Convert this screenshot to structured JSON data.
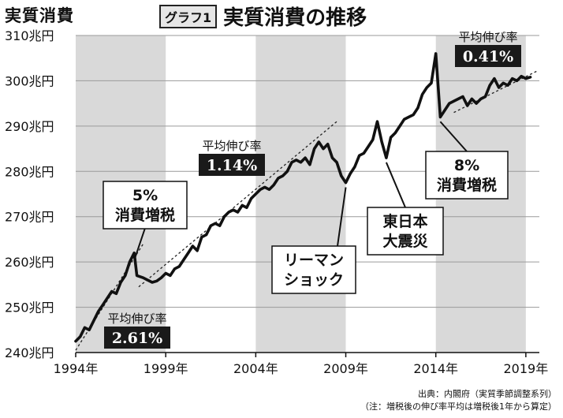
{
  "header": {
    "y_unit_label": "実質消費",
    "graph_badge": "グラフ1",
    "graph_title": "実質消費の推移"
  },
  "notes": {
    "source": "出典：内閣府（実質季節調整系列）",
    "note": "（注：増税後の伸び率平均は増税後1年から算定）"
  },
  "chart_data": {
    "type": "line",
    "title": "実質消費の推移",
    "ylabel": "実質消費",
    "ylim": [
      240,
      310
    ],
    "y_ticks": [
      240,
      250,
      260,
      270,
      280,
      290,
      300,
      310
    ],
    "y_tick_labels": [
      "240兆円",
      "250兆円",
      "260兆円",
      "270兆円",
      "280兆円",
      "290兆円",
      "300兆円",
      "310兆円"
    ],
    "xlim": [
      1994,
      2019.75
    ],
    "x_ticks": [
      1994,
      1999,
      2004,
      2009,
      2014,
      2019
    ],
    "x_tick_labels": [
      "1994年",
      "1999年",
      "2004年",
      "2009年",
      "2014年",
      "2019年"
    ],
    "grid": "horizontal",
    "shaded_periods": [
      [
        1994,
        1999
      ],
      [
        2004,
        2009
      ],
      [
        2014,
        2019
      ]
    ],
    "series": [
      {
        "points": [
          [
            1994.0,
            242.5
          ],
          [
            1994.25,
            243.5
          ],
          [
            1994.5,
            245.5
          ],
          [
            1994.75,
            245.0
          ],
          [
            1995.0,
            247.0
          ],
          [
            1995.25,
            249.0
          ],
          [
            1995.5,
            250.5
          ],
          [
            1995.75,
            252.0
          ],
          [
            1996.0,
            253.5
          ],
          [
            1996.25,
            253.0
          ],
          [
            1996.5,
            255.5
          ],
          [
            1996.75,
            257.0
          ],
          [
            1997.0,
            260.0
          ],
          [
            1997.25,
            262.0
          ],
          [
            1997.4,
            257.0
          ],
          [
            1997.75,
            256.5
          ],
          [
            1998.0,
            256.0
          ],
          [
            1998.25,
            255.5
          ],
          [
            1998.5,
            255.8
          ],
          [
            1998.75,
            256.5
          ],
          [
            1999.0,
            257.5
          ],
          [
            1999.25,
            257.0
          ],
          [
            1999.5,
            258.5
          ],
          [
            1999.75,
            259.0
          ],
          [
            2000.0,
            260.5
          ],
          [
            2000.25,
            262.0
          ],
          [
            2000.5,
            263.5
          ],
          [
            2000.75,
            262.5
          ],
          [
            2001.0,
            265.5
          ],
          [
            2001.25,
            266.0
          ],
          [
            2001.5,
            268.0
          ],
          [
            2001.75,
            268.5
          ],
          [
            2002.0,
            268.0
          ],
          [
            2002.25,
            270.0
          ],
          [
            2002.5,
            271.0
          ],
          [
            2002.75,
            271.5
          ],
          [
            2003.0,
            271.0
          ],
          [
            2003.25,
            272.5
          ],
          [
            2003.5,
            272.0
          ],
          [
            2003.75,
            274.0
          ],
          [
            2004.0,
            275.0
          ],
          [
            2004.25,
            276.0
          ],
          [
            2004.5,
            276.5
          ],
          [
            2004.75,
            276.0
          ],
          [
            2005.0,
            277.0
          ],
          [
            2005.25,
            278.5
          ],
          [
            2005.5,
            279.0
          ],
          [
            2005.75,
            280.0
          ],
          [
            2006.0,
            282.0
          ],
          [
            2006.25,
            282.5
          ],
          [
            2006.5,
            282.0
          ],
          [
            2006.75,
            283.0
          ],
          [
            2007.0,
            281.5
          ],
          [
            2007.25,
            285.0
          ],
          [
            2007.5,
            286.5
          ],
          [
            2007.75,
            285.0
          ],
          [
            2008.0,
            286.0
          ],
          [
            2008.25,
            283.0
          ],
          [
            2008.5,
            282.0
          ],
          [
            2008.75,
            279.0
          ],
          [
            2009.0,
            277.5
          ],
          [
            2009.25,
            279.5
          ],
          [
            2009.5,
            281.0
          ],
          [
            2009.75,
            283.5
          ],
          [
            2010.0,
            284.0
          ],
          [
            2010.25,
            285.5
          ],
          [
            2010.5,
            287.0
          ],
          [
            2010.75,
            291.0
          ],
          [
            2011.0,
            286.5
          ],
          [
            2011.25,
            283.0
          ],
          [
            2011.5,
            287.5
          ],
          [
            2011.75,
            288.5
          ],
          [
            2012.0,
            290.0
          ],
          [
            2012.25,
            291.5
          ],
          [
            2012.5,
            292.0
          ],
          [
            2012.75,
            292.5
          ],
          [
            2013.0,
            294.0
          ],
          [
            2013.25,
            297.0
          ],
          [
            2013.5,
            298.5
          ],
          [
            2013.75,
            299.5
          ],
          [
            2014.0,
            306.0
          ],
          [
            2014.25,
            292.0
          ],
          [
            2014.5,
            293.5
          ],
          [
            2014.75,
            295.0
          ],
          [
            2015.0,
            295.5
          ],
          [
            2015.25,
            296.0
          ],
          [
            2015.5,
            296.5
          ],
          [
            2015.75,
            294.5
          ],
          [
            2016.0,
            296.0
          ],
          [
            2016.25,
            295.0
          ],
          [
            2016.5,
            296.0
          ],
          [
            2016.75,
            296.5
          ],
          [
            2017.0,
            299.0
          ],
          [
            2017.25,
            300.5
          ],
          [
            2017.5,
            298.5
          ],
          [
            2017.75,
            299.5
          ],
          [
            2018.0,
            299.0
          ],
          [
            2018.25,
            300.5
          ],
          [
            2018.5,
            300.0
          ],
          [
            2018.75,
            301.0
          ],
          [
            2019.0,
            300.5
          ],
          [
            2019.25,
            300.8
          ]
        ]
      }
    ],
    "trend_lines": [
      {
        "from": [
          1994.0,
          240.5
        ],
        "to": [
          1997.75,
          264.0
        ]
      },
      {
        "from": [
          1997.5,
          254.5
        ],
        "to": [
          2008.5,
          291.0
        ]
      },
      {
        "from": [
          2015.0,
          293.0
        ],
        "to": [
          2019.7,
          302.3
        ]
      }
    ],
    "growth_callouts": [
      {
        "label": "平均伸び率",
        "value": "2.61%"
      },
      {
        "label": "平均伸び率",
        "value": "1.14%"
      },
      {
        "label": "平均伸び率",
        "value": "0.41%"
      }
    ],
    "event_callouts": [
      {
        "lines": [
          "5%",
          "消費増税"
        ],
        "target": [
          1997.3,
          261.5
        ]
      },
      {
        "lines": [
          "リーマン",
          "ショック"
        ],
        "target": [
          2009.0,
          277.0
        ]
      },
      {
        "lines": [
          "東日本",
          "大震災"
        ],
        "target": [
          2011.25,
          282.5
        ]
      },
      {
        "lines": [
          "8%",
          "消費増税"
        ],
        "target": [
          2014.25,
          291.5
        ]
      }
    ]
  }
}
